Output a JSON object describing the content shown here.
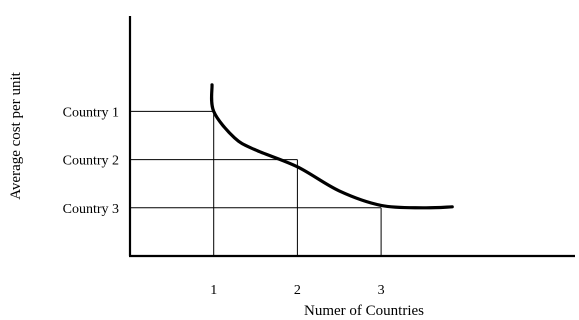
{
  "chart_data": {
    "type": "line",
    "title": "",
    "xlabel": "Numer of Countries",
    "ylabel": "Average cost per unit",
    "x_ticks": [
      "1",
      "2",
      "3"
    ],
    "y_ticks": [
      "Country 1",
      "Country 2",
      "Country 3"
    ],
    "grid": false,
    "legend": "none",
    "curve_color": "#000000",
    "series": [
      {
        "points": [
          {
            "x": 0.98,
            "y": 3.55
          },
          {
            "x": 1.0,
            "y": 3.0
          },
          {
            "x": 1.25,
            "y": 2.45
          },
          {
            "x": 1.5,
            "y": 2.2
          },
          {
            "x": 2.0,
            "y": 1.85
          },
          {
            "x": 2.5,
            "y": 1.35
          },
          {
            "x": 3.0,
            "y": 1.05
          },
          {
            "x": 3.5,
            "y": 1.0
          },
          {
            "x": 3.85,
            "y": 1.02
          }
        ]
      }
    ],
    "reference_lines": [
      {
        "x": 1,
        "y": 3,
        "label": "Country 1"
      },
      {
        "x": 2,
        "y": 2,
        "label": "Country 2"
      },
      {
        "x": 3,
        "y": 1,
        "label": "Country 3"
      }
    ],
    "xlim": [
      0,
      4
    ],
    "ylim": [
      0,
      3.6
    ]
  }
}
